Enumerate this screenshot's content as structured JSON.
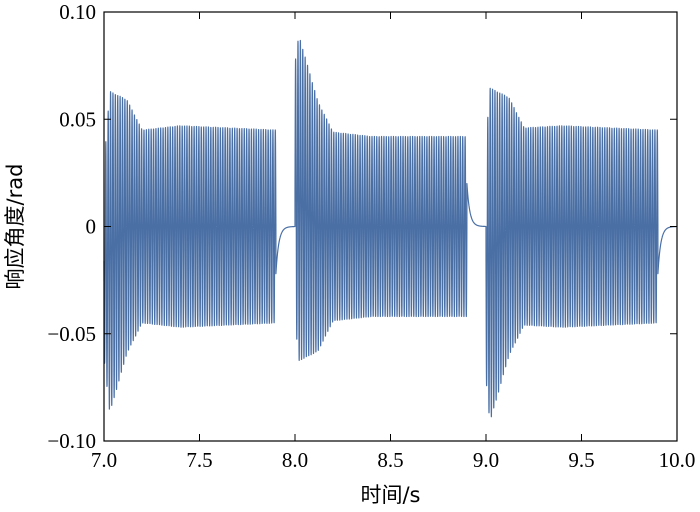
{
  "chart_data": {
    "type": "line",
    "xlabel": "时间/s",
    "ylabel": "响应角度/rad",
    "xlim": [
      7.0,
      10.0
    ],
    "ylim": [
      -0.1,
      0.1
    ],
    "x_ticks": [
      "7.0",
      "7.5",
      "8.0",
      "8.5",
      "9.0",
      "9.5",
      "10.0"
    ],
    "y_ticks": [
      "0.10",
      "0.05",
      "0",
      "−0.05",
      "−0.10"
    ],
    "grid": false,
    "line_color": "#4a6fa5",
    "series": [
      {
        "segments": [
          {
            "t_start": 7.0,
            "t_end": 7.9,
            "freq_hz": 80,
            "phase": 3.1416,
            "envelope": [
              [
                7.0,
                0.045
              ],
              [
                7.03,
                0.075
              ],
              [
                7.2,
                0.045
              ],
              [
                7.4,
                0.047
              ],
              [
                7.9,
                0.045
              ]
            ],
            "offset": [
              [
                7.0,
                -0.016
              ],
              [
                7.12,
                0.0
              ],
              [
                7.9,
                0.0
              ]
            ]
          },
          {
            "t_start": 7.9,
            "t_end": 8.0,
            "decay": {
              "from": -0.022,
              "to": 0.0,
              "tau": 0.015
            }
          },
          {
            "t_start": 8.0,
            "t_end": 8.9,
            "freq_hz": 80,
            "phase": 0.0,
            "envelope": [
              [
                8.0,
                0.06
              ],
              [
                8.02,
                0.076
              ],
              [
                8.2,
                0.044
              ],
              [
                8.4,
                0.042
              ],
              [
                8.9,
                0.042
              ]
            ],
            "offset": [
              [
                8.0,
                0.016
              ],
              [
                8.12,
                0.0
              ],
              [
                8.9,
                0.0
              ]
            ]
          },
          {
            "t_start": 8.9,
            "t_end": 9.0,
            "decay": {
              "from": 0.02,
              "to": 0.0,
              "tau": 0.015
            }
          },
          {
            "t_start": 9.0,
            "t_end": 9.9,
            "freq_hz": 80,
            "phase": 3.1416,
            "envelope": [
              [
                9.0,
                0.055
              ],
              [
                9.02,
                0.078
              ],
              [
                9.2,
                0.046
              ],
              [
                9.4,
                0.047
              ],
              [
                9.9,
                0.045
              ]
            ],
            "offset": [
              [
                9.0,
                -0.016
              ],
              [
                9.12,
                0.0
              ],
              [
                9.9,
                0.0
              ]
            ]
          },
          {
            "t_start": 9.9,
            "t_end": 10.0,
            "decay": {
              "from": -0.022,
              "to": 0.0,
              "tau": 0.015
            }
          }
        ]
      }
    ]
  }
}
